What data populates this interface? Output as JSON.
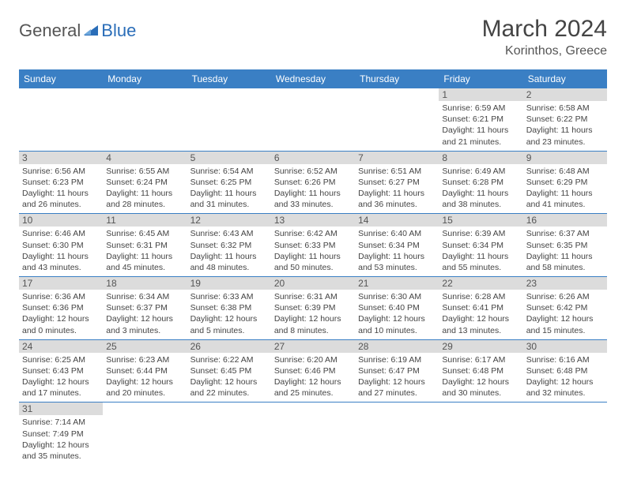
{
  "logo": {
    "text1": "General",
    "text2": "Blue"
  },
  "title": "March 2024",
  "location": "Korinthos, Greece",
  "colors": {
    "header_bg": "#3a7fc4",
    "header_text": "#ffffff",
    "daynum_bg": "#dcdcdc",
    "row_border": "#3a7fc4",
    "logo_gray": "#555555",
    "logo_blue": "#2a6db8"
  },
  "weekdays": [
    "Sunday",
    "Monday",
    "Tuesday",
    "Wednesday",
    "Thursday",
    "Friday",
    "Saturday"
  ],
  "weeks": [
    [
      null,
      null,
      null,
      null,
      null,
      {
        "num": "1",
        "sunrise": "6:59 AM",
        "sunset": "6:21 PM",
        "daylight": "11 hours and 21 minutes."
      },
      {
        "num": "2",
        "sunrise": "6:58 AM",
        "sunset": "6:22 PM",
        "daylight": "11 hours and 23 minutes."
      }
    ],
    [
      {
        "num": "3",
        "sunrise": "6:56 AM",
        "sunset": "6:23 PM",
        "daylight": "11 hours and 26 minutes."
      },
      {
        "num": "4",
        "sunrise": "6:55 AM",
        "sunset": "6:24 PM",
        "daylight": "11 hours and 28 minutes."
      },
      {
        "num": "5",
        "sunrise": "6:54 AM",
        "sunset": "6:25 PM",
        "daylight": "11 hours and 31 minutes."
      },
      {
        "num": "6",
        "sunrise": "6:52 AM",
        "sunset": "6:26 PM",
        "daylight": "11 hours and 33 minutes."
      },
      {
        "num": "7",
        "sunrise": "6:51 AM",
        "sunset": "6:27 PM",
        "daylight": "11 hours and 36 minutes."
      },
      {
        "num": "8",
        "sunrise": "6:49 AM",
        "sunset": "6:28 PM",
        "daylight": "11 hours and 38 minutes."
      },
      {
        "num": "9",
        "sunrise": "6:48 AM",
        "sunset": "6:29 PM",
        "daylight": "11 hours and 41 minutes."
      }
    ],
    [
      {
        "num": "10",
        "sunrise": "6:46 AM",
        "sunset": "6:30 PM",
        "daylight": "11 hours and 43 minutes."
      },
      {
        "num": "11",
        "sunrise": "6:45 AM",
        "sunset": "6:31 PM",
        "daylight": "11 hours and 45 minutes."
      },
      {
        "num": "12",
        "sunrise": "6:43 AM",
        "sunset": "6:32 PM",
        "daylight": "11 hours and 48 minutes."
      },
      {
        "num": "13",
        "sunrise": "6:42 AM",
        "sunset": "6:33 PM",
        "daylight": "11 hours and 50 minutes."
      },
      {
        "num": "14",
        "sunrise": "6:40 AM",
        "sunset": "6:34 PM",
        "daylight": "11 hours and 53 minutes."
      },
      {
        "num": "15",
        "sunrise": "6:39 AM",
        "sunset": "6:34 PM",
        "daylight": "11 hours and 55 minutes."
      },
      {
        "num": "16",
        "sunrise": "6:37 AM",
        "sunset": "6:35 PM",
        "daylight": "11 hours and 58 minutes."
      }
    ],
    [
      {
        "num": "17",
        "sunrise": "6:36 AM",
        "sunset": "6:36 PM",
        "daylight": "12 hours and 0 minutes."
      },
      {
        "num": "18",
        "sunrise": "6:34 AM",
        "sunset": "6:37 PM",
        "daylight": "12 hours and 3 minutes."
      },
      {
        "num": "19",
        "sunrise": "6:33 AM",
        "sunset": "6:38 PM",
        "daylight": "12 hours and 5 minutes."
      },
      {
        "num": "20",
        "sunrise": "6:31 AM",
        "sunset": "6:39 PM",
        "daylight": "12 hours and 8 minutes."
      },
      {
        "num": "21",
        "sunrise": "6:30 AM",
        "sunset": "6:40 PM",
        "daylight": "12 hours and 10 minutes."
      },
      {
        "num": "22",
        "sunrise": "6:28 AM",
        "sunset": "6:41 PM",
        "daylight": "12 hours and 13 minutes."
      },
      {
        "num": "23",
        "sunrise": "6:26 AM",
        "sunset": "6:42 PM",
        "daylight": "12 hours and 15 minutes."
      }
    ],
    [
      {
        "num": "24",
        "sunrise": "6:25 AM",
        "sunset": "6:43 PM",
        "daylight": "12 hours and 17 minutes."
      },
      {
        "num": "25",
        "sunrise": "6:23 AM",
        "sunset": "6:44 PM",
        "daylight": "12 hours and 20 minutes."
      },
      {
        "num": "26",
        "sunrise": "6:22 AM",
        "sunset": "6:45 PM",
        "daylight": "12 hours and 22 minutes."
      },
      {
        "num": "27",
        "sunrise": "6:20 AM",
        "sunset": "6:46 PM",
        "daylight": "12 hours and 25 minutes."
      },
      {
        "num": "28",
        "sunrise": "6:19 AM",
        "sunset": "6:47 PM",
        "daylight": "12 hours and 27 minutes."
      },
      {
        "num": "29",
        "sunrise": "6:17 AM",
        "sunset": "6:48 PM",
        "daylight": "12 hours and 30 minutes."
      },
      {
        "num": "30",
        "sunrise": "6:16 AM",
        "sunset": "6:48 PM",
        "daylight": "12 hours and 32 minutes."
      }
    ],
    [
      {
        "num": "31",
        "sunrise": "7:14 AM",
        "sunset": "7:49 PM",
        "daylight": "12 hours and 35 minutes."
      },
      null,
      null,
      null,
      null,
      null,
      null
    ]
  ],
  "labels": {
    "sunrise": "Sunrise:",
    "sunset": "Sunset:",
    "daylight": "Daylight:"
  }
}
